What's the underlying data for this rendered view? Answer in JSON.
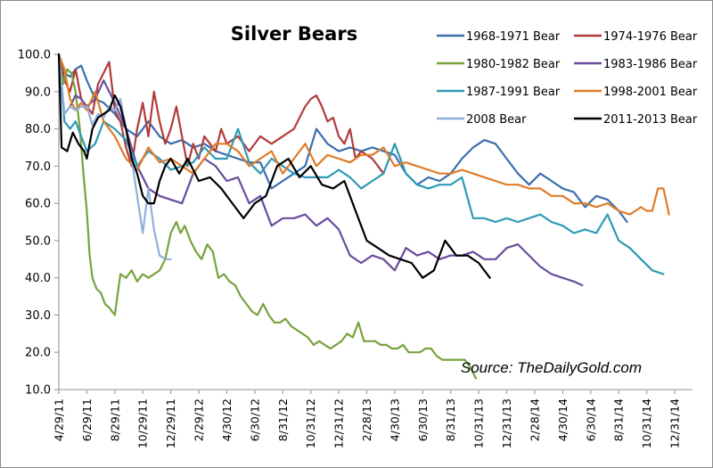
{
  "chart_data": {
    "type": "line",
    "title": "Silver Bears",
    "xlabel": "",
    "ylabel": "",
    "ylim": [
      10,
      100
    ],
    "yticks": [
      "100.0",
      "90.0",
      "80.0",
      "70.0",
      "60.0",
      "50.0",
      "40.0",
      "30.0",
      "20.0",
      "10.0"
    ],
    "ytick_values": [
      100,
      90,
      80,
      70,
      60,
      50,
      40,
      30,
      20,
      10
    ],
    "categories": [
      "4/29/11",
      "6/29/11",
      "8/29/11",
      "10/29/11",
      "12/29/11",
      "2/29/12",
      "4/30/12",
      "6/30/12",
      "8/31/12",
      "10/31/12",
      "12/31/12",
      "2/28/13",
      "4/30/13",
      "6/30/13",
      "8/31/13",
      "10/31/13",
      "12/31/13",
      "2/28/14",
      "4/30/14",
      "6/30/14",
      "8/31/14",
      "10/31/14",
      "12/31/14"
    ],
    "x_unit": "tick index (0 = 4/29/11, each step ≈ 2 months)",
    "grid": false,
    "legend_position": "top-right",
    "annotation": "Source: TheDailyGold.com",
    "series": [
      {
        "name": "1968-1971 Bear",
        "color": "#3a6fb0",
        "x": [
          0,
          0.2,
          0.4,
          0.6,
          0.8,
          1.0,
          1.3,
          1.6,
          2.0,
          2.4,
          2.8,
          3.2,
          3.6,
          4.0,
          4.4,
          4.8,
          5.2,
          5.6,
          6.0,
          6.4,
          6.8,
          7.2,
          7.6,
          8.0,
          8.4,
          8.8,
          9.2,
          9.6,
          10.0,
          10.4,
          10.8,
          11.2,
          11.6,
          12.0,
          12.4,
          12.8,
          13.2,
          13.6,
          14.0,
          14.4,
          14.8,
          15.2,
          15.6,
          16.0,
          16.4,
          16.8,
          17.2,
          17.6,
          18.0,
          18.4,
          18.8,
          19.2,
          19.6,
          20.0,
          20.3
        ],
        "values": [
          100,
          95,
          94,
          96,
          97,
          93,
          88,
          87,
          84,
          80,
          78,
          82,
          78,
          76,
          77,
          75,
          76,
          74,
          73,
          72,
          71,
          71,
          64,
          66,
          68,
          70,
          80,
          76,
          74,
          75,
          74,
          75,
          74,
          73,
          68,
          65,
          67,
          66,
          68,
          72,
          75,
          77,
          76,
          72,
          68,
          65,
          68,
          66,
          64,
          63,
          59,
          62,
          61,
          58,
          55
        ]
      },
      {
        "name": "1974-1976 Bear",
        "color": "#b23b3b",
        "x": [
          0,
          0.2,
          0.4,
          0.6,
          0.8,
          1.0,
          1.2,
          1.4,
          1.6,
          1.8,
          2.0,
          2.2,
          2.4,
          2.6,
          2.8,
          3.0,
          3.2,
          3.4,
          3.6,
          3.8,
          4.0,
          4.2,
          4.4,
          4.6,
          4.8,
          5.0,
          5.2,
          5.4,
          5.6,
          5.8,
          6.0,
          6.4,
          6.8,
          7.2,
          7.6,
          8.0,
          8.4,
          8.8,
          9.0,
          9.2,
          9.4,
          9.6,
          9.8,
          10.0,
          10.2,
          10.4,
          10.6,
          10.8,
          11.0,
          11.2,
          11.4,
          11.6
        ],
        "values": [
          100,
          93,
          90,
          96,
          88,
          86,
          84,
          92,
          95,
          98,
          85,
          82,
          75,
          70,
          80,
          87,
          78,
          90,
          82,
          76,
          80,
          86,
          78,
          70,
          76,
          72,
          78,
          76,
          74,
          80,
          76,
          78,
          74,
          78,
          76,
          78,
          80,
          86,
          88,
          89,
          86,
          82,
          83,
          78,
          76,
          80,
          72,
          74,
          73,
          72,
          70,
          68
        ]
      },
      {
        "name": "1980-1982 Bear",
        "color": "#77a23c",
        "x": [
          0,
          0.15,
          0.3,
          0.45,
          0.6,
          0.75,
          0.9,
          1.0,
          1.1,
          1.2,
          1.35,
          1.5,
          1.65,
          1.8,
          2.0,
          2.2,
          2.4,
          2.6,
          2.8,
          3.0,
          3.2,
          3.4,
          3.6,
          3.8,
          4.0,
          4.2,
          4.35,
          4.5,
          4.7,
          4.9,
          5.1,
          5.3,
          5.5,
          5.7,
          5.9,
          6.1,
          6.3,
          6.5,
          6.7,
          6.9,
          7.1,
          7.3,
          7.5,
          7.7,
          7.9,
          8.1,
          8.3,
          8.5,
          8.7,
          8.9,
          9.1,
          9.3,
          9.5,
          9.7,
          9.9,
          10.1,
          10.3,
          10.5,
          10.7,
          10.9,
          11.1,
          11.3,
          11.5,
          11.7,
          11.9,
          12.1,
          12.3,
          12.5,
          12.7,
          12.9,
          13.1,
          13.3,
          13.5,
          13.7,
          13.9,
          14.1,
          14.3,
          14.5,
          14.7,
          14.9
        ],
        "values": [
          100,
          92,
          96,
          95,
          90,
          80,
          66,
          58,
          46,
          40,
          37,
          36,
          33,
          32,
          30,
          41,
          40,
          42,
          39,
          41,
          40,
          41,
          42,
          45,
          52,
          55,
          52,
          54,
          50,
          47,
          45,
          49,
          47,
          40,
          41,
          39,
          38,
          35,
          33,
          31,
          30,
          33,
          30,
          28,
          28,
          29,
          27,
          26,
          25,
          24,
          22,
          23,
          22,
          21,
          22,
          23,
          25,
          24,
          28,
          23,
          23,
          23,
          22,
          22,
          21,
          21,
          22,
          20,
          20,
          20,
          21,
          21,
          19,
          18,
          18,
          18,
          18,
          18,
          16,
          13
        ]
      },
      {
        "name": "1983-1986 Bear",
        "color": "#6a4c9c",
        "x": [
          0,
          0.2,
          0.4,
          0.6,
          0.8,
          1.0,
          1.3,
          1.6,
          2.0,
          2.4,
          2.8,
          3.2,
          3.6,
          4.0,
          4.4,
          4.8,
          5.2,
          5.6,
          6.0,
          6.4,
          6.8,
          7.2,
          7.6,
          8.0,
          8.4,
          8.8,
          9.2,
          9.6,
          10.0,
          10.4,
          10.8,
          11.2,
          11.6,
          12.0,
          12.4,
          12.8,
          13.2,
          13.6,
          14.0,
          14.4,
          14.8,
          15.2,
          15.6,
          16.0,
          16.4,
          16.8,
          17.2,
          17.6,
          18.0,
          18.4,
          18.7
        ],
        "values": [
          100,
          84,
          86,
          89,
          88,
          86,
          88,
          93,
          87,
          80,
          70,
          64,
          62,
          61,
          60,
          68,
          72,
          70,
          66,
          67,
          60,
          62,
          54,
          56,
          56,
          57,
          54,
          56,
          53,
          46,
          44,
          46,
          45,
          42,
          48,
          46,
          47,
          45,
          46,
          46,
          47,
          45,
          45,
          48,
          49,
          46,
          43,
          41,
          40,
          39,
          38
        ]
      },
      {
        "name": "1987-1991 Bear",
        "color": "#2e9ab5",
        "x": [
          0,
          0.2,
          0.4,
          0.6,
          0.8,
          1.0,
          1.3,
          1.6,
          2.0,
          2.4,
          2.8,
          3.2,
          3.6,
          4.0,
          4.4,
          4.8,
          5.2,
          5.6,
          6.0,
          6.4,
          6.8,
          7.2,
          7.6,
          8.0,
          8.4,
          8.8,
          9.2,
          9.6,
          10.0,
          10.4,
          10.8,
          11.2,
          11.6,
          12.0,
          12.4,
          12.8,
          13.2,
          13.6,
          14.0,
          14.4,
          14.8,
          15.2,
          15.6,
          16.0,
          16.4,
          16.8,
          17.2,
          17.6,
          18.0,
          18.4,
          18.8,
          19.2,
          19.6,
          20.0,
          20.4,
          20.8,
          21.2,
          21.6
        ],
        "values": [
          100,
          82,
          80,
          82,
          78,
          74,
          76,
          82,
          80,
          77,
          70,
          74,
          72,
          69,
          70,
          71,
          75,
          72,
          72,
          80,
          71,
          68,
          72,
          70,
          68,
          67,
          67,
          67,
          69,
          67,
          64,
          66,
          68,
          76,
          68,
          65,
          64,
          65,
          65,
          67,
          56,
          56,
          55,
          56,
          55,
          56,
          57,
          55,
          54,
          52,
          53,
          52,
          57,
          50,
          48,
          45,
          42,
          41
        ]
      },
      {
        "name": "1998-2001 Bear",
        "color": "#e07b27",
        "x": [
          0,
          0.2,
          0.4,
          0.6,
          0.8,
          1.0,
          1.3,
          1.6,
          2.0,
          2.4,
          2.8,
          3.2,
          3.6,
          4.0,
          4.4,
          4.8,
          5.2,
          5.6,
          6.0,
          6.4,
          6.8,
          7.2,
          7.6,
          8.0,
          8.4,
          8.8,
          9.2,
          9.6,
          10.0,
          10.4,
          10.8,
          11.2,
          11.6,
          12.0,
          12.4,
          12.8,
          13.2,
          13.6,
          14.0,
          14.4,
          14.8,
          15.2,
          15.6,
          16.0,
          16.4,
          16.8,
          17.2,
          17.6,
          18.0,
          18.4,
          18.8,
          19.2,
          19.6,
          20.0,
          20.4,
          20.8,
          21.0,
          21.2,
          21.4,
          21.6,
          21.8
        ],
        "values": [
          100,
          96,
          88,
          85,
          87,
          85,
          90,
          82,
          78,
          72,
          69,
          75,
          71,
          72,
          70,
          68,
          72,
          76,
          76,
          74,
          70,
          72,
          74,
          68,
          72,
          76,
          70,
          73,
          72,
          71,
          73,
          73,
          75,
          70,
          71,
          70,
          69,
          68,
          68,
          69,
          68,
          67,
          66,
          65,
          65,
          64,
          64,
          62,
          62,
          60,
          60,
          59,
          60,
          58,
          57,
          59,
          58,
          58,
          64,
          64,
          57
        ]
      },
      {
        "name": "2008 Bear",
        "color": "#8fb0dc",
        "x": [
          0,
          0.2,
          0.4,
          0.6,
          0.8,
          1.0,
          1.2,
          1.4,
          1.6,
          1.8,
          2.0,
          2.2,
          2.4,
          2.6,
          2.8,
          3.0,
          3.2,
          3.4,
          3.6,
          3.8,
          4.0
        ],
        "values": [
          100,
          84,
          86,
          85,
          86,
          86,
          81,
          84,
          83,
          86,
          85,
          88,
          80,
          72,
          62,
          52,
          64,
          53,
          46,
          45,
          45
        ]
      },
      {
        "name": "2011-2013 Bear",
        "color": "#000000",
        "x": [
          0,
          0.1,
          0.3,
          0.5,
          0.7,
          0.9,
          1.0,
          1.2,
          1.4,
          1.6,
          1.8,
          2.0,
          2.2,
          2.4,
          2.6,
          2.8,
          3.0,
          3.2,
          3.4,
          3.6,
          3.8,
          4.0,
          4.3,
          4.6,
          5.0,
          5.4,
          5.8,
          6.2,
          6.6,
          7.0,
          7.4,
          7.8,
          8.2,
          8.6,
          9.0,
          9.4,
          9.8,
          10.2,
          10.6,
          11.0,
          11.4,
          11.8,
          12.2,
          12.6,
          13.0,
          13.4,
          13.8,
          14.2,
          14.6,
          15.0,
          15.4
        ],
        "values": [
          100,
          75,
          74,
          79,
          76,
          74,
          72,
          80,
          83,
          84,
          85,
          89,
          86,
          80,
          72,
          68,
          62,
          60,
          60,
          66,
          70,
          72,
          68,
          72,
          66,
          67,
          64,
          60,
          56,
          60,
          62,
          70,
          72,
          67,
          70,
          65,
          64,
          66,
          58,
          50,
          48,
          46,
          45,
          44,
          40,
          42,
          50,
          46,
          46,
          44,
          40
        ]
      }
    ]
  }
}
